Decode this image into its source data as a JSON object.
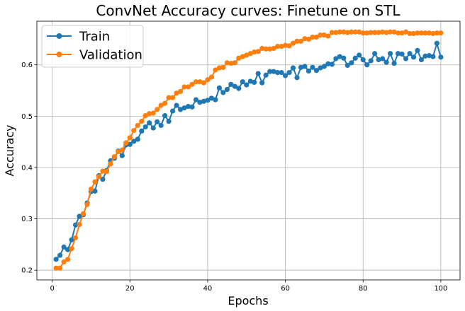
{
  "chart_data": {
    "type": "line",
    "title": "ConvNet Accuracy curves: Finetune on STL",
    "xlabel": "Epochs",
    "ylabel": "Accuracy",
    "xlim": [
      -3.95,
      104.95
    ],
    "ylim": [
      0.181,
      0.685
    ],
    "grid": true,
    "legend_position": "top-left",
    "x_ticks": [
      0,
      20,
      40,
      60,
      80,
      100
    ],
    "y_ticks": [
      0.2,
      0.3,
      0.4,
      0.5,
      0.6
    ],
    "x_tick_labels": [
      "0",
      "20",
      "40",
      "60",
      "80",
      "100"
    ],
    "y_tick_labels": [
      "0.2",
      "0.3",
      "0.4",
      "0.5",
      "0.6"
    ],
    "x": [
      1,
      2,
      3,
      4,
      5,
      6,
      7,
      8,
      9,
      10,
      11,
      12,
      13,
      14,
      15,
      16,
      17,
      18,
      19,
      20,
      21,
      22,
      23,
      24,
      25,
      26,
      27,
      28,
      29,
      30,
      31,
      32,
      33,
      34,
      35,
      36,
      37,
      38,
      39,
      40,
      41,
      42,
      43,
      44,
      45,
      46,
      47,
      48,
      49,
      50,
      51,
      52,
      53,
      54,
      55,
      56,
      57,
      58,
      59,
      60,
      61,
      62,
      63,
      64,
      65,
      66,
      67,
      68,
      69,
      70,
      71,
      72,
      73,
      74,
      75,
      76,
      77,
      78,
      79,
      80,
      81,
      82,
      83,
      84,
      85,
      86,
      87,
      88,
      89,
      90,
      91,
      92,
      93,
      94,
      95,
      96,
      97,
      98,
      99,
      100
    ],
    "series": [
      {
        "name": "Train",
        "color": "#1f77b4",
        "values": [
          0.221,
          0.229,
          0.245,
          0.24,
          0.259,
          0.288,
          0.305,
          0.308,
          0.331,
          0.353,
          0.354,
          0.384,
          0.377,
          0.394,
          0.413,
          0.418,
          0.432,
          0.423,
          0.444,
          0.445,
          0.451,
          0.455,
          0.471,
          0.479,
          0.487,
          0.477,
          0.489,
          0.482,
          0.501,
          0.49,
          0.51,
          0.521,
          0.513,
          0.516,
          0.519,
          0.518,
          0.532,
          0.527,
          0.529,
          0.531,
          0.535,
          0.532,
          0.555,
          0.546,
          0.552,
          0.562,
          0.558,
          0.554,
          0.567,
          0.561,
          0.568,
          0.566,
          0.583,
          0.565,
          0.58,
          0.587,
          0.587,
          0.585,
          0.585,
          0.579,
          0.585,
          0.594,
          0.575,
          0.595,
          0.597,
          0.588,
          0.595,
          0.589,
          0.594,
          0.597,
          0.602,
          0.601,
          0.612,
          0.616,
          0.613,
          0.599,
          0.604,
          0.613,
          0.619,
          0.61,
          0.6,
          0.608,
          0.622,
          0.61,
          0.612,
          0.605,
          0.622,
          0.603,
          0.622,
          0.621,
          0.612,
          0.622,
          0.615,
          0.628,
          0.61,
          0.617,
          0.618,
          0.616,
          0.642,
          0.615
        ]
      },
      {
        "name": "Validation",
        "color": "#ff7f0e",
        "values": [
          0.204,
          0.204,
          0.216,
          0.221,
          0.242,
          0.263,
          0.289,
          0.31,
          0.328,
          0.358,
          0.372,
          0.382,
          0.393,
          0.392,
          0.407,
          0.421,
          0.431,
          0.434,
          0.448,
          0.458,
          0.472,
          0.482,
          0.49,
          0.501,
          0.505,
          0.506,
          0.513,
          0.521,
          0.525,
          0.536,
          0.536,
          0.545,
          0.548,
          0.557,
          0.557,
          0.562,
          0.567,
          0.567,
          0.565,
          0.571,
          0.576,
          0.59,
          0.594,
          0.595,
          0.604,
          0.603,
          0.604,
          0.613,
          0.616,
          0.619,
          0.622,
          0.625,
          0.626,
          0.632,
          0.631,
          0.631,
          0.632,
          0.636,
          0.636,
          0.638,
          0.637,
          0.642,
          0.646,
          0.646,
          0.651,
          0.65,
          0.654,
          0.654,
          0.658,
          0.658,
          0.656,
          0.663,
          0.663,
          0.664,
          0.664,
          0.663,
          0.664,
          0.664,
          0.664,
          0.662,
          0.662,
          0.663,
          0.663,
          0.663,
          0.664,
          0.663,
          0.664,
          0.664,
          0.662,
          0.662,
          0.664,
          0.661,
          0.661,
          0.662,
          0.662,
          0.662,
          0.662,
          0.661,
          0.662,
          0.662
        ]
      }
    ]
  }
}
